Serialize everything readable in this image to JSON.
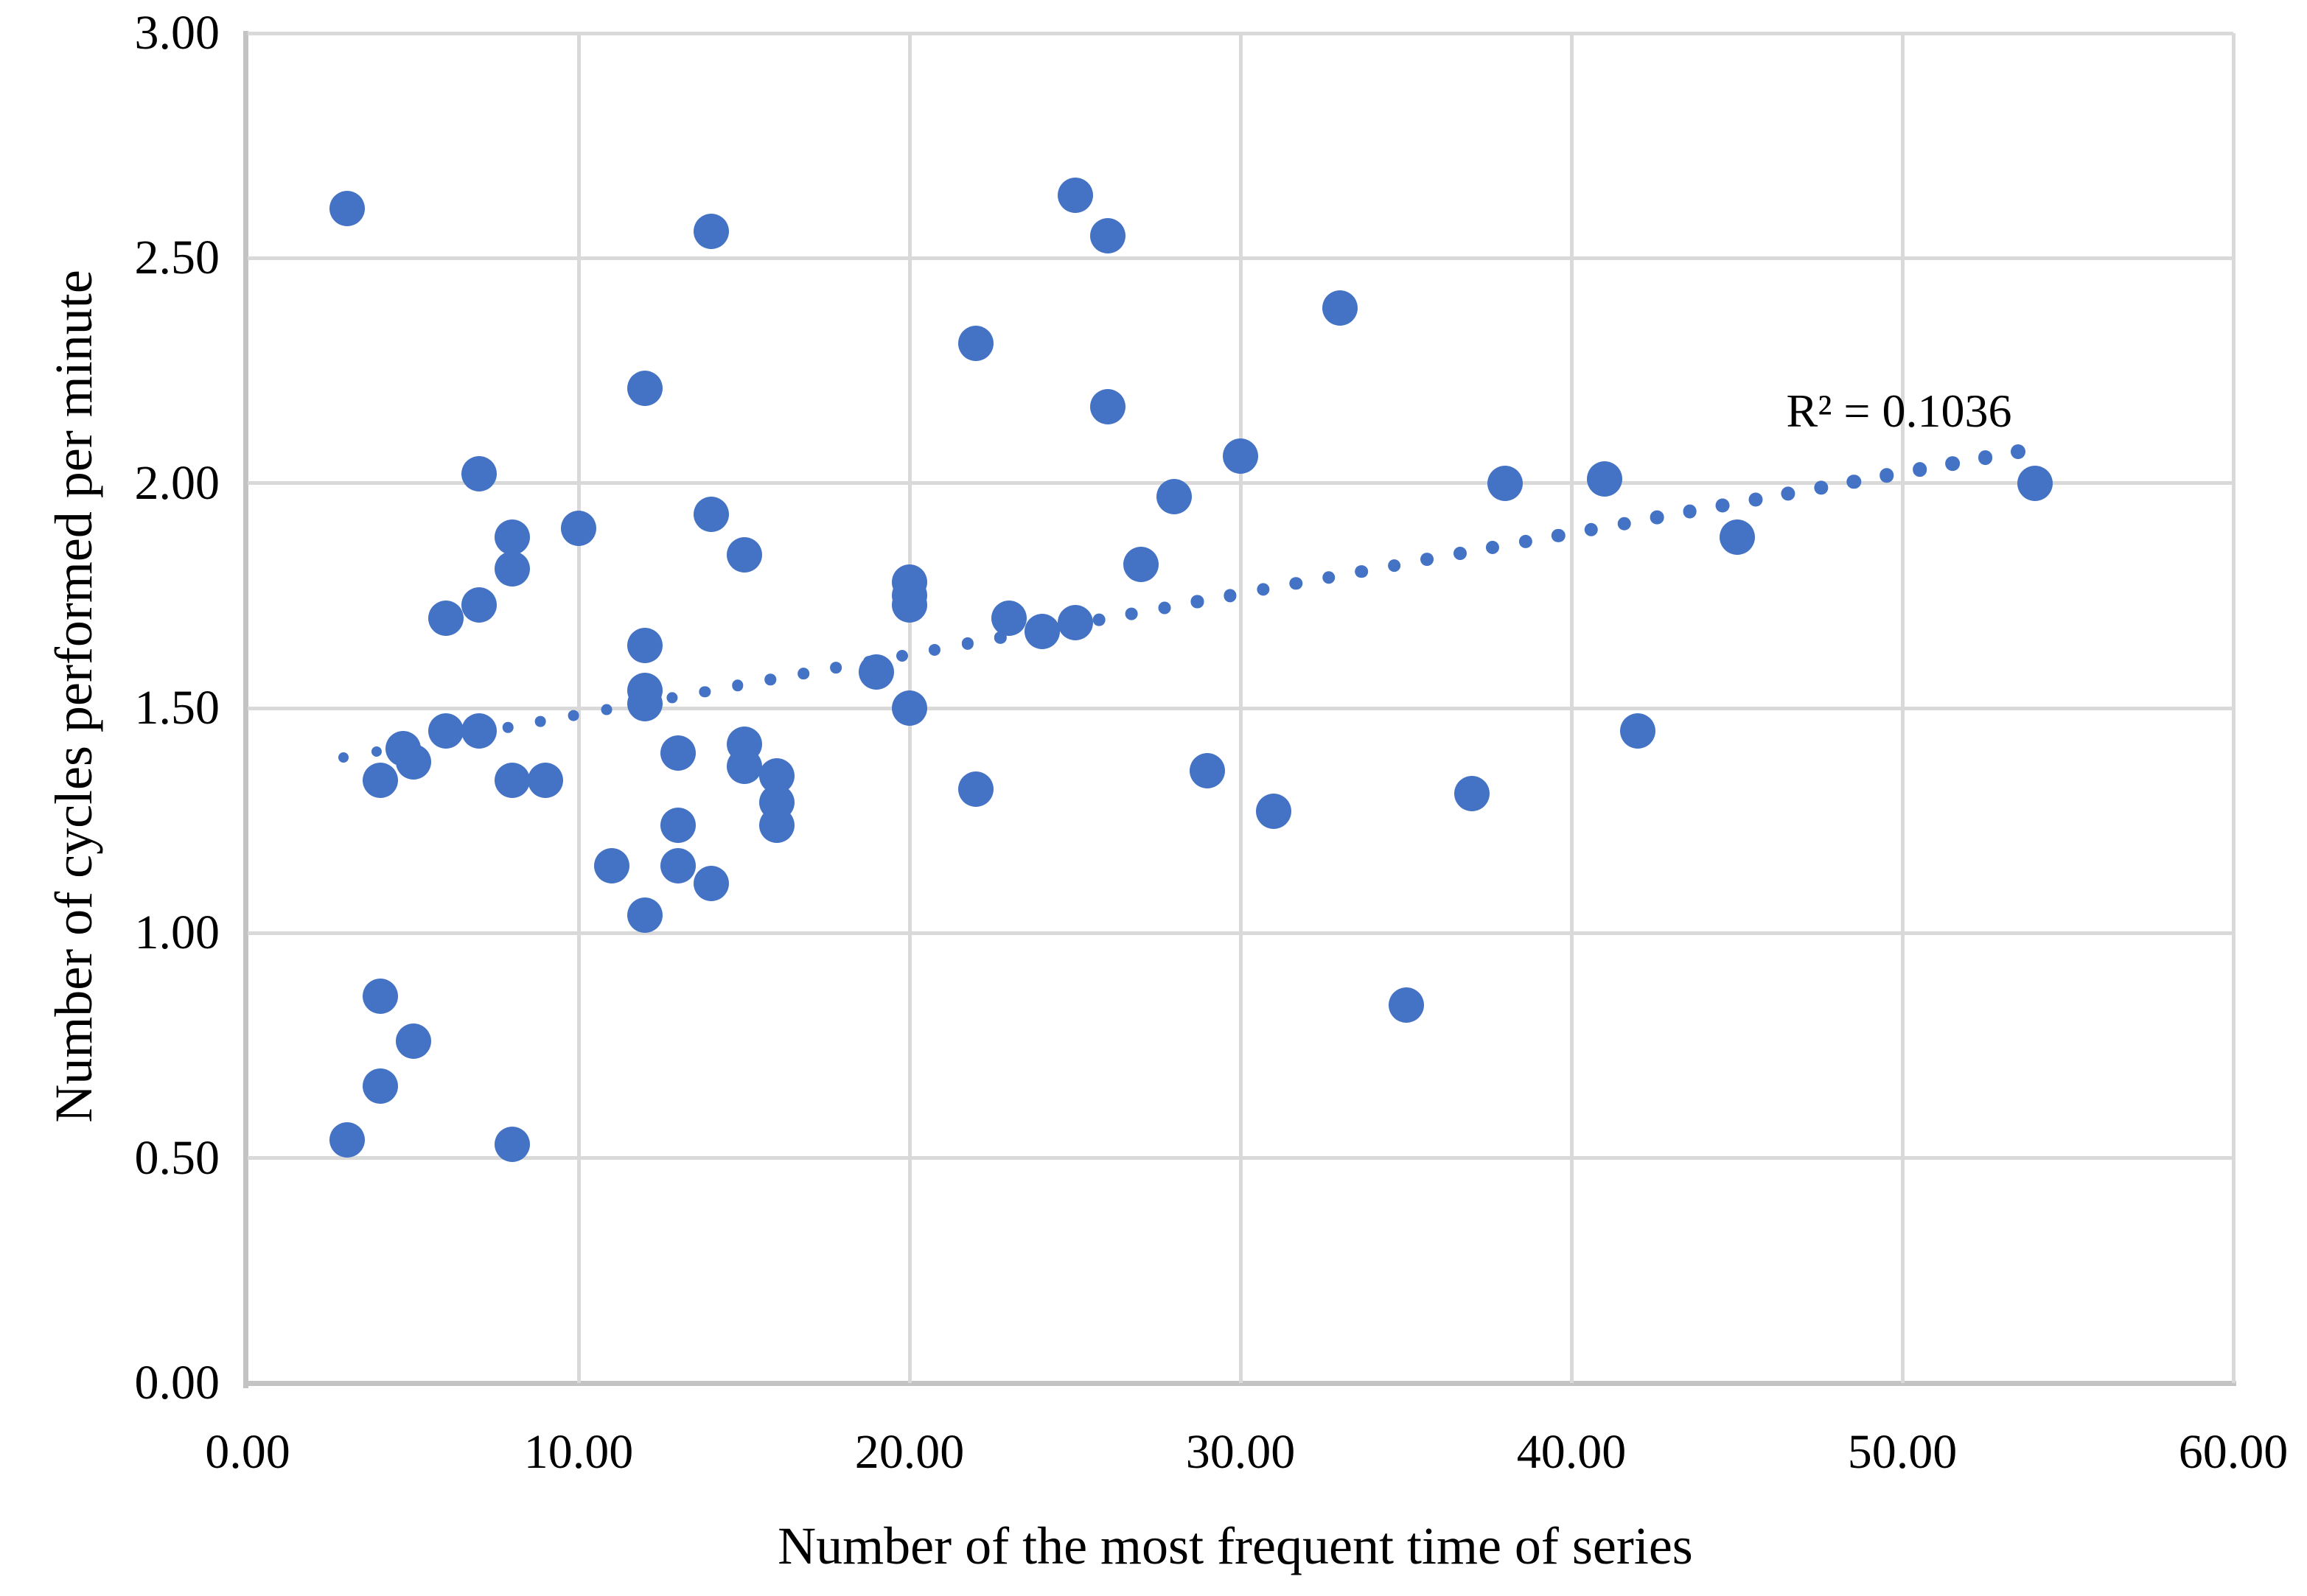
{
  "chart_data": {
    "type": "scatter",
    "title": "",
    "xlabel": "Number of the most frequent time of series",
    "ylabel": "Number of cycles performed per minute",
    "xlim": [
      0,
      60
    ],
    "ylim": [
      0,
      3
    ],
    "x_ticks": [
      "0.00",
      "10.00",
      "20.00",
      "30.00",
      "40.00",
      "50.00",
      "60.00"
    ],
    "y_ticks": [
      "0.00",
      "0.50",
      "1.00",
      "1.50",
      "2.00",
      "2.50",
      "3.00"
    ],
    "grid": true,
    "legend": "none",
    "points": [
      [
        3,
        2.61
      ],
      [
        14,
        2.56
      ],
      [
        25,
        2.64
      ],
      [
        26,
        2.55
      ],
      [
        22,
        2.31
      ],
      [
        12,
        2.21
      ],
      [
        26,
        2.17
      ],
      [
        33,
        2.39
      ],
      [
        30,
        2.06
      ],
      [
        28,
        1.97
      ],
      [
        7,
        2.02
      ],
      [
        38,
        2.0
      ],
      [
        41,
        2.01
      ],
      [
        45,
        1.88
      ],
      [
        54,
        2.0
      ],
      [
        10,
        1.9
      ],
      [
        14,
        1.93
      ],
      [
        8,
        1.88
      ],
      [
        8,
        1.81
      ],
      [
        15,
        1.84
      ],
      [
        27,
        1.82
      ],
      [
        20,
        1.78
      ],
      [
        20,
        1.75
      ],
      [
        20,
        1.73
      ],
      [
        7,
        1.73
      ],
      [
        6,
        1.7
      ],
      [
        23,
        1.7
      ],
      [
        24,
        1.67
      ],
      [
        25,
        1.69
      ],
      [
        12,
        1.64
      ],
      [
        19,
        1.58
      ],
      [
        12,
        1.54
      ],
      [
        12,
        1.51
      ],
      [
        20,
        1.5
      ],
      [
        6,
        1.45
      ],
      [
        7,
        1.45
      ],
      [
        42,
        1.45
      ],
      [
        4.7,
        1.41
      ],
      [
        5,
        1.38
      ],
      [
        4,
        1.34
      ],
      [
        8,
        1.34
      ],
      [
        9,
        1.34
      ],
      [
        13,
        1.4
      ],
      [
        15,
        1.42
      ],
      [
        15,
        1.37
      ],
      [
        16,
        1.35
      ],
      [
        16,
        1.29
      ],
      [
        16,
        1.24
      ],
      [
        13,
        1.24
      ],
      [
        13,
        1.15
      ],
      [
        11,
        1.15
      ],
      [
        14,
        1.11
      ],
      [
        12,
        1.04
      ],
      [
        22,
        1.32
      ],
      [
        29,
        1.36
      ],
      [
        31,
        1.27
      ],
      [
        37,
        1.31
      ],
      [
        35,
        0.84
      ],
      [
        4,
        0.86
      ],
      [
        5,
        0.76
      ],
      [
        4,
        0.66
      ],
      [
        3,
        0.54
      ],
      [
        8,
        0.53
      ]
    ],
    "trendline": {
      "style": "dotted",
      "x_start": 2.9,
      "y_start": 1.39,
      "x_end": 53.5,
      "y_end": 2.07,
      "label": "R² = 0.1036",
      "label_x": 49.9,
      "label_y": 2.16
    },
    "colors": {
      "marker": "#4472C4",
      "trend": "#4472C4",
      "grid": "#D9D9D9",
      "axis": "#C3C3C3",
      "text": "#000000"
    }
  }
}
